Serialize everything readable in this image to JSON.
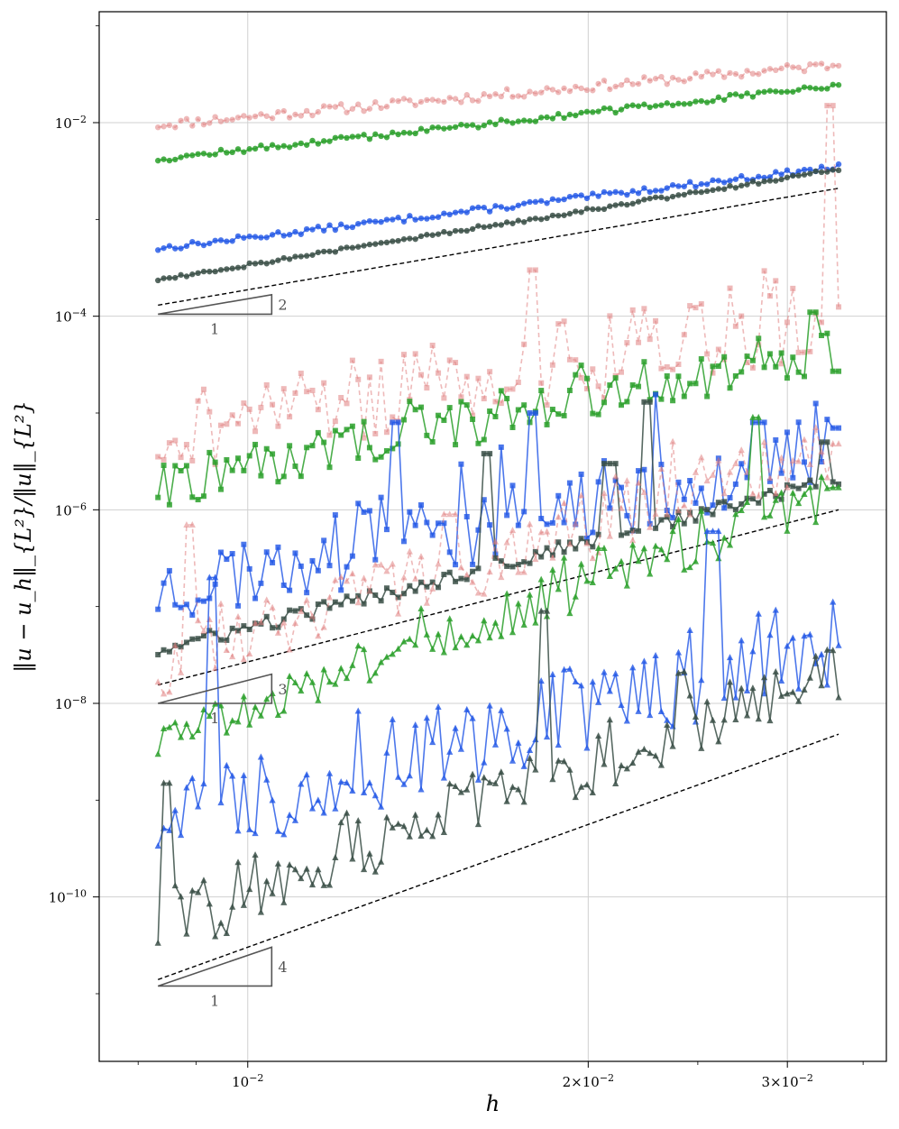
{
  "chart_data": {
    "type": "line",
    "title": "",
    "xlabel": "h",
    "ylabel": "‖u − u_h‖_{L²}/‖u‖_{L²}",
    "xscale": "log",
    "yscale": "log",
    "xlim": [
      0.00739,
      0.0367
    ],
    "ylim": [
      2e-12,
      0.14
    ],
    "grid": true,
    "x_ticks": [
      {
        "value": 0.01,
        "base": "10",
        "exp": "−2",
        "mult": ""
      },
      {
        "value": 0.02,
        "base": "10",
        "exp": "−2",
        "mult": "2×"
      },
      {
        "value": 0.03,
        "base": "10",
        "exp": "−2",
        "mult": "3×"
      }
    ],
    "y_ticks": [
      {
        "value": 0.01,
        "base": "10",
        "exp": "−2"
      },
      {
        "value": 0.0001,
        "base": "10",
        "exp": "−4"
      },
      {
        "value": 1e-06,
        "base": "10",
        "exp": "−6"
      },
      {
        "value": 1e-08,
        "base": "10",
        "exp": "−8"
      },
      {
        "value": 1e-10,
        "base": "10",
        "exp": "−10"
      }
    ],
    "h_range": [
      0.00833,
      0.0333
    ],
    "series": [
      {
        "color": "#e08080",
        "opacity": 0.55,
        "dash": true,
        "marker": "circle",
        "y0": 0.0095,
        "y1": 0.04,
        "noise": 0.05,
        "seed": 11,
        "spikes": []
      },
      {
        "color": "#2ca02c",
        "opacity": 0.85,
        "dash": false,
        "marker": "circle",
        "y0": 0.0042,
        "y1": 0.024,
        "noise": 0.03,
        "seed": 12,
        "spikes": []
      },
      {
        "color": "#1f55e6",
        "opacity": 0.8,
        "dash": false,
        "marker": "circle",
        "y0": 0.0005,
        "y1": 0.0035,
        "noise": 0.03,
        "seed": 13,
        "spikes": []
      },
      {
        "color": "#3a4f46",
        "opacity": 0.85,
        "dash": false,
        "marker": "circle",
        "y0": 0.00024,
        "y1": 0.0033,
        "noise": 0.02,
        "seed": 14,
        "spikes": []
      },
      {
        "color": "#e08080",
        "opacity": 0.55,
        "dash": true,
        "marker": "square",
        "y0": 6e-06,
        "y1": 0.00011,
        "noise": 0.45,
        "seed": 21,
        "spikes": [
          [
            0.0327,
            0.015
          ],
          [
            0.0178,
            0.0003
          ]
        ]
      },
      {
        "color": "#2ca02c",
        "opacity": 0.85,
        "dash": false,
        "marker": "square",
        "y0": 1.8e-06,
        "y1": 5e-05,
        "noise": 0.25,
        "seed": 22,
        "spikes": [
          [
            0.0316,
            0.00011
          ],
          [
            0.0333,
            2.7e-05
          ]
        ]
      },
      {
        "color": "#1f55e6",
        "opacity": 0.8,
        "dash": false,
        "marker": "square",
        "y0": 1.5e-07,
        "y1": 4e-06,
        "noise": 0.4,
        "seed": 23,
        "spikes": [
          [
            0.0178,
            1e-05
          ],
          [
            0.0135,
            8e-06
          ],
          [
            0.0283,
            8e-06
          ],
          [
            0.0333,
            7e-06
          ]
        ]
      },
      {
        "color": "#3a4f46",
        "opacity": 0.85,
        "dash": false,
        "marker": "square",
        "y0": 3.5e-08,
        "y1": 2.1e-06,
        "noise": 0.08,
        "seed": 24,
        "spikes": [
          [
            0.0225,
            1.3e-05
          ],
          [
            0.0162,
            3.8e-06
          ],
          [
            0.0209,
            3e-06
          ],
          [
            0.0322,
            5e-06
          ]
        ]
      },
      {
        "color": "#e08080",
        "opacity": 0.55,
        "dash": true,
        "marker": "triangle",
        "y0": 2.5e-08,
        "y1": 4.5e-06,
        "noise": 0.35,
        "seed": 31,
        "spikes": [
          [
            0.0089,
            7e-07
          ],
          [
            0.0151,
            9e-07
          ]
        ]
      },
      {
        "color": "#2ca02c",
        "opacity": 0.85,
        "dash": false,
        "marker": "triangle",
        "y0": 4e-09,
        "y1": 1.6e-06,
        "noise": 0.25,
        "seed": 32,
        "spikes": [
          [
            0.0281,
            9e-06
          ],
          [
            0.0205,
            4e-07
          ],
          [
            0.0333,
            1.7e-06
          ]
        ]
      },
      {
        "color": "#1f55e6",
        "opacity": 0.8,
        "dash": false,
        "marker": "triangle",
        "y0": 6e-10,
        "y1": 5e-08,
        "noise": 0.5,
        "seed": 33,
        "spikes": [
          [
            0.0258,
            6e-07
          ],
          [
            0.0093,
            2e-07
          ]
        ]
      },
      {
        "color": "#3a4f46",
        "opacity": 0.85,
        "dash": false,
        "marker": "triangle",
        "y0": 5e-11,
        "y1": 2.5e-08,
        "noise": 0.35,
        "seed": 34,
        "spikes": [
          [
            0.0182,
            9e-08
          ],
          [
            0.0085,
            1.5e-09
          ]
        ]
      }
    ],
    "reference_lines": [
      {
        "h0": 0.00833,
        "y0": 0.00013,
        "h1": 0.0333,
        "y1": 0.0021
      },
      {
        "h0": 0.00833,
        "y0": 1.55e-08,
        "h1": 0.0333,
        "y1": 1e-06
      },
      {
        "h0": 0.00833,
        "y0": 1.4e-11,
        "h1": 0.0333,
        "y1": 4.8e-09
      }
    ],
    "slope_triangles": [
      {
        "h0": 0.00833,
        "h1": 0.0105,
        "y0": 0.000105,
        "rise": 2,
        "run": 1
      },
      {
        "h0": 0.00833,
        "h1": 0.0105,
        "y0": 1e-08,
        "rise": 3,
        "run": 1
      },
      {
        "h0": 0.00833,
        "h1": 0.0105,
        "y0": 1.2e-11,
        "rise": 4,
        "run": 1
      }
    ]
  }
}
